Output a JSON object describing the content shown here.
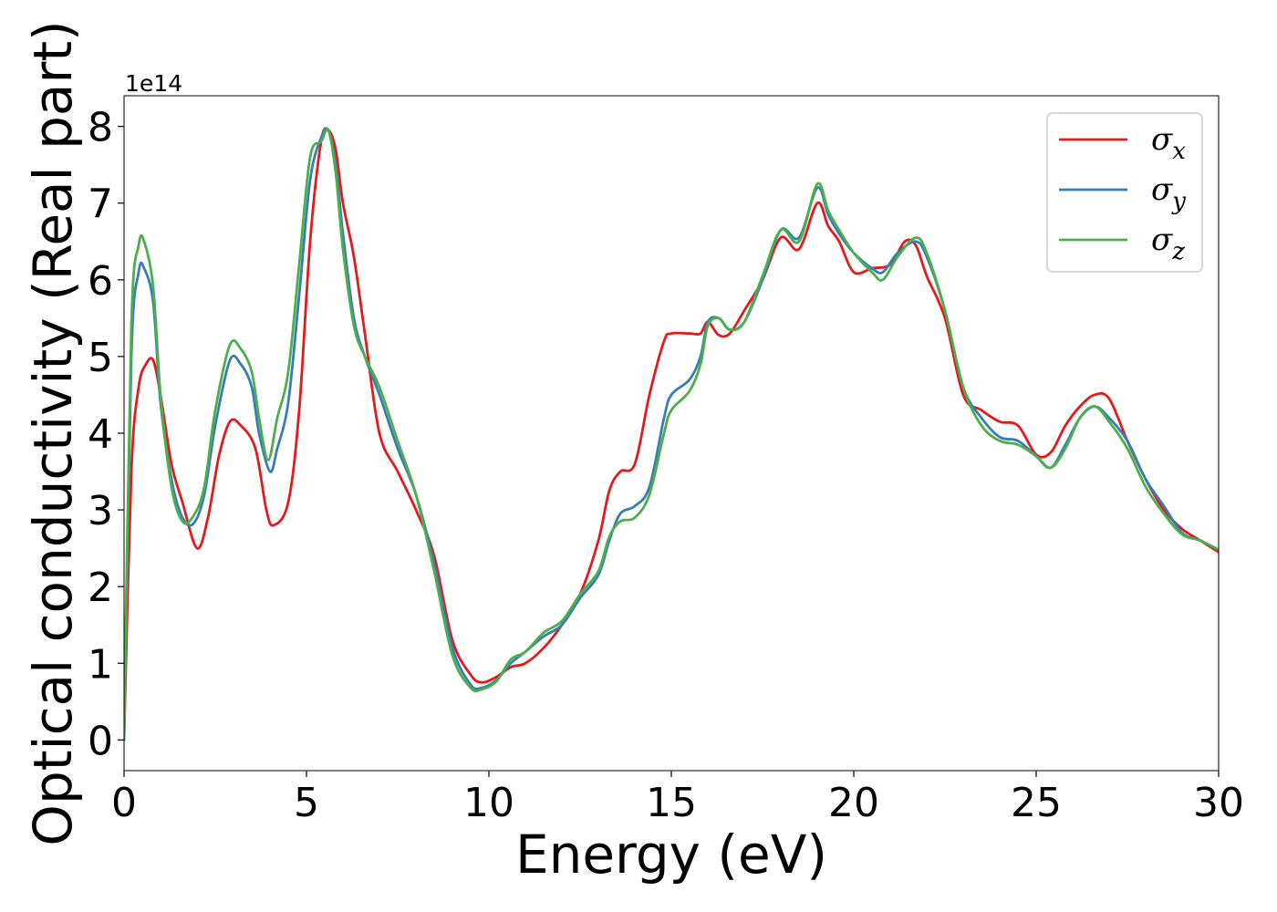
{
  "chart_data": {
    "type": "line",
    "xlabel": "Energy (eV)",
    "ylabel": "Optical conductivity (Real part)",
    "offset_text": "1e14",
    "y_scale": 100000000000000.0,
    "xlim": [
      0,
      30
    ],
    "ylim": [
      -0.4,
      8.4
    ],
    "xticks": [
      0,
      5,
      10,
      15,
      20,
      25,
      30
    ],
    "yticks": [
      0,
      1,
      2,
      3,
      4,
      5,
      6,
      7,
      8
    ],
    "grid": false,
    "legend": {
      "position": "top-right"
    },
    "series": [
      {
        "name": "σx",
        "label_base": "σ",
        "label_sub": "x",
        "color": "#e41a1c",
        "x": [
          0,
          0.2,
          0.4,
          0.6,
          0.8,
          1.0,
          1.3,
          1.6,
          2.0,
          2.3,
          2.6,
          2.9,
          3.2,
          3.6,
          3.9,
          4.1,
          4.5,
          4.8,
          5.1,
          5.4,
          5.6,
          5.8,
          6.0,
          6.3,
          6.6,
          7.0,
          7.5,
          8.0,
          8.5,
          9.0,
          9.5,
          9.8,
          10.2,
          10.6,
          11.0,
          11.5,
          12.0,
          12.5,
          13.0,
          13.3,
          13.6,
          14.0,
          14.4,
          14.8,
          15.0,
          15.5,
          15.8,
          16.0,
          16.3,
          16.6,
          17.0,
          17.5,
          18.0,
          18.5,
          19.0,
          19.3,
          19.6,
          20.0,
          20.5,
          21.0,
          21.4,
          21.7,
          22.0,
          22.5,
          23.0,
          23.5,
          24.0,
          24.5,
          25.0,
          25.4,
          25.8,
          26.2,
          26.6,
          27.0,
          27.5,
          28.0,
          28.5,
          29.0,
          29.5,
          30.0
        ],
        "y": [
          0.0,
          3.5,
          4.6,
          4.9,
          4.95,
          4.5,
          3.6,
          3.1,
          2.5,
          2.9,
          3.7,
          4.15,
          4.1,
          3.8,
          3.0,
          2.8,
          3.1,
          4.3,
          6.5,
          7.8,
          7.95,
          7.7,
          7.0,
          6.3,
          5.3,
          4.0,
          3.5,
          3.0,
          2.4,
          1.3,
          0.85,
          0.75,
          0.82,
          0.95,
          1.0,
          1.2,
          1.5,
          1.9,
          2.6,
          3.25,
          3.5,
          3.6,
          4.5,
          5.2,
          5.3,
          5.3,
          5.3,
          5.45,
          5.28,
          5.3,
          5.6,
          6.0,
          6.55,
          6.4,
          7.0,
          6.7,
          6.5,
          6.1,
          6.15,
          6.2,
          6.5,
          6.45,
          6.05,
          5.5,
          4.5,
          4.3,
          4.15,
          4.1,
          3.72,
          3.75,
          4.1,
          4.35,
          4.5,
          4.45,
          3.9,
          3.4,
          3.0,
          2.75,
          2.6,
          2.45
        ]
      },
      {
        "name": "σy",
        "label_base": "σ",
        "label_sub": "y",
        "color": "#377eb8",
        "x": [
          0,
          0.2,
          0.4,
          0.55,
          0.8,
          1.0,
          1.3,
          1.6,
          1.9,
          2.2,
          2.5,
          2.9,
          3.2,
          3.5,
          3.7,
          4.0,
          4.2,
          4.5,
          4.8,
          5.1,
          5.4,
          5.6,
          5.8,
          6.0,
          6.3,
          6.6,
          7.0,
          7.5,
          8.0,
          8.5,
          9.0,
          9.5,
          9.8,
          10.2,
          10.6,
          11.0,
          11.5,
          12.0,
          12.5,
          13.0,
          13.3,
          13.6,
          14.0,
          14.4,
          14.8,
          15.0,
          15.5,
          15.8,
          16.0,
          16.3,
          16.6,
          17.0,
          17.5,
          18.0,
          18.5,
          19.0,
          19.3,
          19.6,
          20.0,
          20.5,
          20.8,
          21.2,
          21.7,
          22.0,
          22.5,
          23.0,
          23.5,
          24.0,
          24.5,
          25.0,
          25.4,
          25.8,
          26.2,
          26.6,
          27.0,
          27.5,
          28.0,
          28.5,
          29.0,
          29.5,
          30.0
        ],
        "y": [
          0.0,
          5.0,
          6.1,
          6.15,
          5.7,
          4.4,
          3.4,
          2.9,
          2.82,
          3.2,
          4.1,
          4.95,
          4.9,
          4.6,
          4.0,
          3.5,
          3.8,
          4.4,
          5.8,
          7.3,
          7.85,
          7.95,
          7.5,
          6.6,
          5.5,
          5.0,
          4.5,
          3.8,
          3.2,
          2.3,
          1.2,
          0.72,
          0.68,
          0.78,
          1.0,
          1.15,
          1.35,
          1.5,
          1.85,
          2.15,
          2.6,
          2.95,
          3.05,
          3.3,
          4.2,
          4.5,
          4.7,
          5.0,
          5.45,
          5.5,
          5.35,
          5.45,
          6.0,
          6.65,
          6.55,
          7.2,
          6.85,
          6.6,
          6.35,
          6.15,
          6.1,
          6.35,
          6.5,
          6.3,
          5.6,
          4.6,
          4.2,
          3.95,
          3.9,
          3.7,
          3.55,
          3.85,
          4.2,
          4.35,
          4.2,
          3.9,
          3.4,
          3.05,
          2.7,
          2.6,
          2.48
        ]
      },
      {
        "name": "σz",
        "label_base": "σ",
        "label_sub": "z",
        "color": "#4daf4a",
        "x": [
          0,
          0.2,
          0.4,
          0.55,
          0.8,
          1.0,
          1.3,
          1.6,
          1.9,
          2.2,
          2.5,
          2.9,
          3.2,
          3.5,
          3.7,
          3.95,
          4.2,
          4.5,
          4.8,
          5.1,
          5.4,
          5.6,
          5.8,
          6.0,
          6.3,
          6.6,
          7.0,
          7.5,
          8.0,
          8.5,
          9.0,
          9.5,
          9.8,
          10.2,
          10.6,
          11.0,
          11.5,
          12.0,
          12.5,
          13.0,
          13.3,
          13.6,
          14.0,
          14.4,
          14.8,
          15.0,
          15.5,
          15.8,
          16.0,
          16.3,
          16.6,
          17.0,
          17.5,
          18.0,
          18.5,
          19.0,
          19.3,
          19.6,
          20.0,
          20.5,
          20.8,
          21.2,
          21.7,
          22.0,
          22.5,
          23.0,
          23.5,
          24.0,
          24.5,
          25.0,
          25.4,
          25.8,
          26.2,
          26.6,
          27.0,
          27.5,
          28.0,
          28.5,
          29.0,
          29.5,
          30.0
        ],
        "y": [
          0.0,
          5.4,
          6.45,
          6.5,
          5.9,
          4.5,
          3.3,
          2.85,
          2.92,
          3.3,
          4.3,
          5.15,
          5.1,
          4.8,
          4.2,
          3.65,
          4.2,
          4.8,
          6.2,
          7.6,
          7.8,
          7.95,
          7.4,
          6.4,
          5.4,
          5.0,
          4.6,
          3.9,
          3.2,
          2.2,
          1.1,
          0.68,
          0.66,
          0.76,
          1.05,
          1.15,
          1.4,
          1.55,
          1.9,
          2.2,
          2.65,
          2.85,
          2.9,
          3.2,
          4.0,
          4.3,
          4.55,
          4.9,
          5.4,
          5.5,
          5.35,
          5.45,
          6.05,
          6.65,
          6.5,
          7.25,
          6.9,
          6.65,
          6.35,
          6.1,
          6.0,
          6.3,
          6.55,
          6.35,
          5.6,
          4.6,
          4.1,
          3.9,
          3.85,
          3.7,
          3.55,
          3.8,
          4.2,
          4.35,
          4.15,
          3.8,
          3.3,
          2.95,
          2.68,
          2.6,
          2.48
        ]
      }
    ]
  }
}
